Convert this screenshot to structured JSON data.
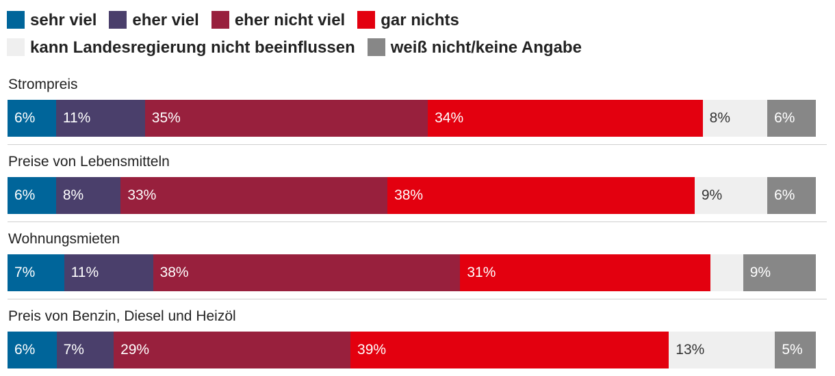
{
  "chart_data": {
    "type": "bar",
    "orientation": "horizontal",
    "stacked": true,
    "categories": [
      "Strompreis",
      "Preise von Lebensmitteln",
      "Wohnungsmieten",
      "Preis von Benzin, Diesel und Heizöl"
    ],
    "series": [
      {
        "name": "sehr viel",
        "color": "#00659a",
        "values": [
          6,
          6,
          7,
          6
        ]
      },
      {
        "name": "eher viel",
        "color": "#4a3f6b",
        "values": [
          11,
          8,
          11,
          7
        ]
      },
      {
        "name": "eher nicht viel",
        "color": "#98203d",
        "values": [
          35,
          33,
          38,
          29
        ]
      },
      {
        "name": "gar nichts",
        "color": "#e3000f",
        "values": [
          34,
          38,
          31,
          39
        ]
      },
      {
        "name": "kann Landesregierung nicht beeinflussen",
        "color": "#efefef",
        "values": [
          8,
          9,
          4,
          13
        ]
      },
      {
        "name": "weiß nicht/keine Angabe",
        "color": "#878787",
        "values": [
          6,
          6,
          9,
          5
        ]
      }
    ],
    "labels_shown": [
      [
        "6%",
        "11%",
        "35%",
        "34%",
        "8%",
        "6%"
      ],
      [
        "6%",
        "8%",
        "33%",
        "38%",
        "9%",
        "6%"
      ],
      [
        "7%",
        "11%",
        "38%",
        "31%",
        "",
        "9%"
      ],
      [
        "6%",
        "7%",
        "29%",
        "39%",
        "13%",
        "5%"
      ]
    ],
    "legend_position": "top",
    "unit": "%"
  }
}
